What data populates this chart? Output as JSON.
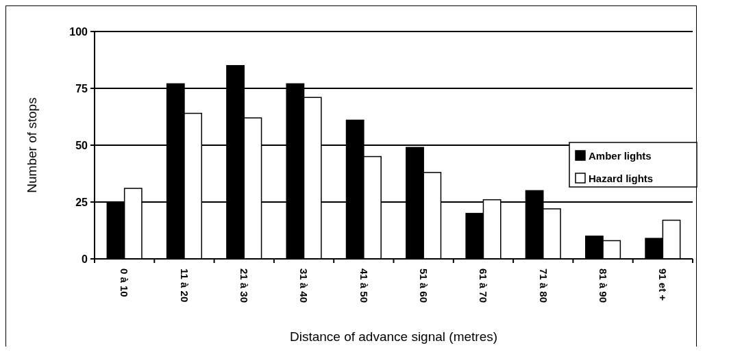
{
  "chart_data": {
    "type": "bar",
    "xlabel": "Distance of advance signal (metres)",
    "ylabel": "Number of stops",
    "categories": [
      "0 à 10",
      "11 à 20",
      "21 à 30",
      "31 à 40",
      "41 à 50",
      "51 à 60",
      "61 à 70",
      "71 à 80",
      "81 à 90",
      "91 et +"
    ],
    "series": [
      {
        "name": "Amber lights",
        "color": "#000000",
        "values": [
          25,
          77,
          85,
          77,
          61,
          49,
          20,
          30,
          10,
          9
        ]
      },
      {
        "name": "Hazard lights",
        "color": "#ffffff",
        "values": [
          31,
          64,
          62,
          71,
          45,
          38,
          26,
          22,
          8,
          17
        ]
      }
    ],
    "ylim": [
      0,
      100
    ],
    "yticks": [
      0,
      25,
      50,
      75,
      100
    ],
    "grid": "y",
    "legend": "right"
  }
}
